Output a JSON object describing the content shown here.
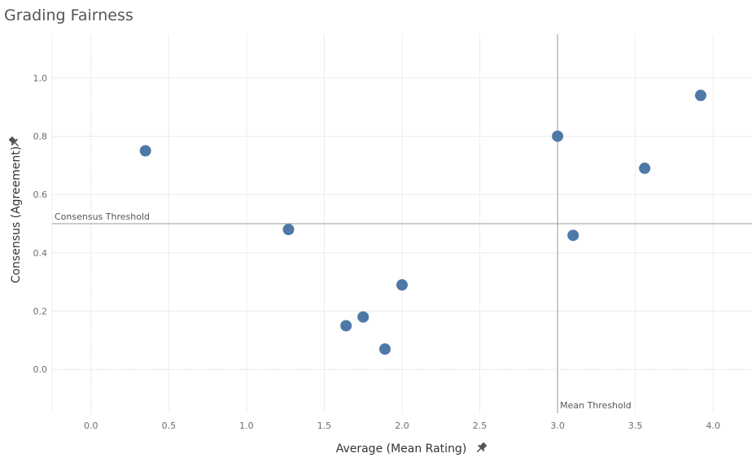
{
  "page": {
    "title": "Grading Fairness"
  },
  "chart_data": {
    "type": "scatter",
    "title": "Grading Fairness",
    "xlabel": "Average (Mean Rating)",
    "ylabel": "Consensus (Agreement)",
    "xlim": [
      -0.25,
      4.25
    ],
    "ylim": [
      -0.15,
      1.15
    ],
    "xticks": [
      "0.0",
      "0.5",
      "1.0",
      "1.5",
      "2.0",
      "2.5",
      "3.0",
      "3.5",
      "4.0"
    ],
    "yticks": [
      "0.0",
      "0.2",
      "0.4",
      "0.6",
      "0.8",
      "1.0"
    ],
    "grid": true,
    "point_color": "#4e79a7",
    "points": [
      {
        "x": 0.35,
        "y": 0.75
      },
      {
        "x": 1.27,
        "y": 0.48
      },
      {
        "x": 1.64,
        "y": 0.15
      },
      {
        "x": 1.75,
        "y": 0.18
      },
      {
        "x": 1.89,
        "y": 0.07
      },
      {
        "x": 2.0,
        "y": 0.29
      },
      {
        "x": 3.0,
        "y": 0.8
      },
      {
        "x": 3.1,
        "y": 0.46
      },
      {
        "x": 3.56,
        "y": 0.69
      },
      {
        "x": 3.92,
        "y": 0.94
      }
    ],
    "reference_lines": {
      "consensus": {
        "label": "Consensus Threshold",
        "y": 0.5
      },
      "mean": {
        "label": "Mean Threshold",
        "x": 3.0
      }
    }
  }
}
